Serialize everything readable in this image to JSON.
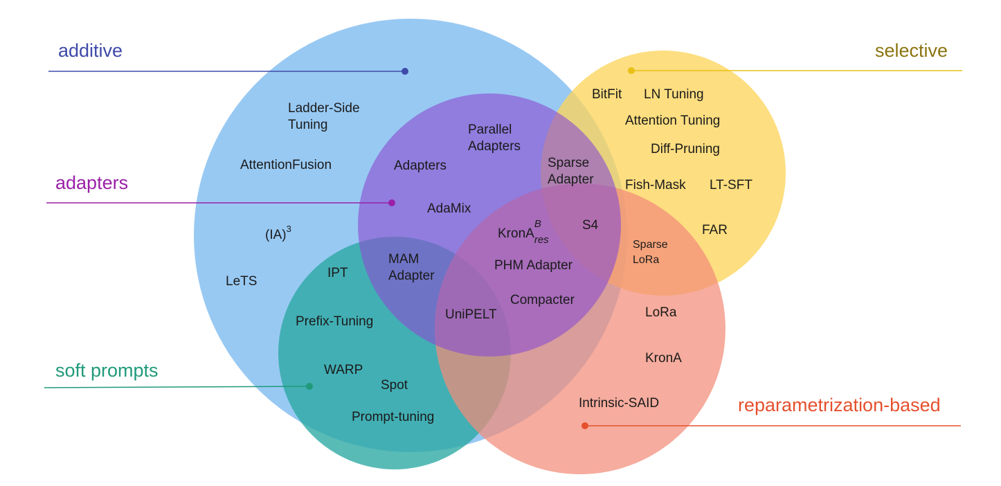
{
  "categories": {
    "additive": {
      "label": "additive",
      "color": "#3f4aa8",
      "fill": "#8fc4f2"
    },
    "selective": {
      "label": "selective",
      "color": "#8c7410",
      "fill": "#fcd55c"
    },
    "adapters": {
      "label": "adapters",
      "color": "#9b1fa8",
      "fill": "#8a4fd0"
    },
    "soft_prompts": {
      "label": "soft prompts",
      "color": "#1f9a7a",
      "fill": "#2aa8a2"
    },
    "reparametrization": {
      "label": "reparametrization-based",
      "color": "#e5502e",
      "fill": "#f28c78"
    }
  },
  "methods": {
    "ladder_side_1": "Ladder-Side",
    "ladder_side_2": "Tuning",
    "attention_fusion": "AttentionFusion",
    "ia3_base": "(IA)",
    "ia3_sup": "3",
    "lets": "LeTS",
    "adapters": "Adapters",
    "parallel_adapters_1": "Parallel",
    "parallel_adapters_2": "Adapters",
    "adamix": "AdaMix",
    "mam_adapter_1": "MAM",
    "mam_adapter_2": "Adapter",
    "ipt": "IPT",
    "prefix_tuning": "Prefix-Tuning",
    "warp": "WARP",
    "spot": "Spot",
    "prompt_tuning": "Prompt-tuning",
    "krona_res_base": "KronA",
    "krona_res_sup": "B",
    "krona_res_sub": "res",
    "phm_adapter": "PHM Adapter",
    "compacter": "Compacter",
    "unipelt": "UniPELT",
    "sparse_adapter_1": "Sparse",
    "sparse_adapter_2": "Adapter",
    "s4": "S4",
    "bitfit": "BitFit",
    "ln_tuning": "LN Tuning",
    "attention_tuning": "Attention Tuning",
    "diff_pruning": "Diff-Pruning",
    "fish_mask": "Fish-Mask",
    "lt_sft": "LT-SFT",
    "far": "FAR",
    "sparse_lora_1": "Sparse",
    "sparse_lora_2": "LoRa",
    "lora": "LoRa",
    "krona": "KronA",
    "intrinsic_said": "Intrinsic-SAID"
  }
}
